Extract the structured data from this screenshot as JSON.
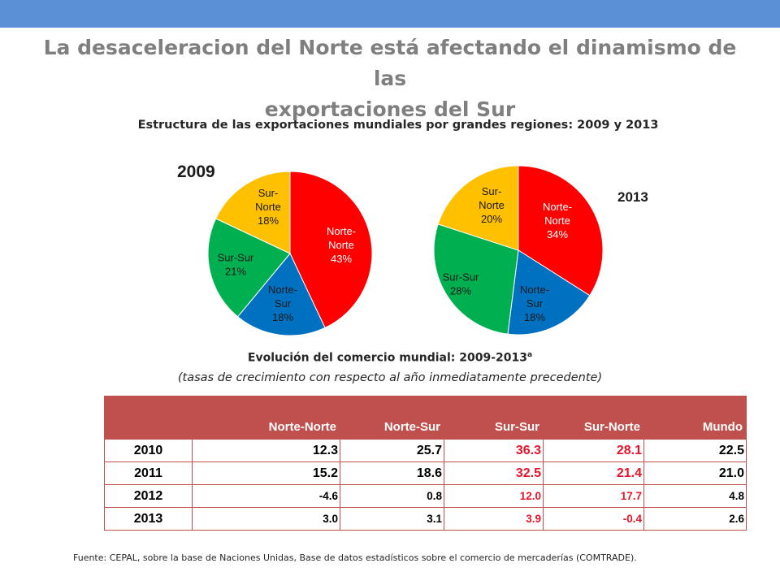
{
  "header_color": "#5b8fd6",
  "title_line1": "La desaceleracion del Norte está afectando el dinamismo de las",
  "title_line2": "exportaciones del Sur",
  "subtitle": "Estructura de las exportaciones mundiales por grandes regiones: 2009 y 2013",
  "chart_data": [
    {
      "type": "pie",
      "title": "2009",
      "slices": [
        {
          "label": [
            "Norte-",
            "Norte",
            "43%"
          ],
          "name": "Norte-Norte",
          "value": 43,
          "color": "#ff0000",
          "text_color": "#ffffff"
        },
        {
          "label": [
            "Norte-",
            "Sur",
            "18%"
          ],
          "name": "Norte-Sur",
          "value": 18,
          "color": "#0070c0",
          "text_color": "#1a1a1a"
        },
        {
          "label": [
            "Sur-Sur",
            "21%"
          ],
          "name": "Sur-Sur",
          "value": 21,
          "color": "#00b050",
          "text_color": "#1a1a1a"
        },
        {
          "label": [
            "Sur-",
            "Norte",
            "18%"
          ],
          "name": "Sur-Norte",
          "value": 18,
          "color": "#ffc000",
          "text_color": "#1a1a1a"
        }
      ]
    },
    {
      "type": "pie",
      "title": "2013",
      "slices": [
        {
          "label": [
            "Norte-",
            "Norte",
            "34%"
          ],
          "name": "Norte-Norte",
          "value": 34,
          "color": "#ff0000",
          "text_color": "#ffffff"
        },
        {
          "label": [
            "Norte-",
            "Sur",
            "18%"
          ],
          "name": "Norte-Sur",
          "value": 18,
          "color": "#0070c0",
          "text_color": "#1a1a1a"
        },
        {
          "label": [
            "Sur-Sur",
            "28%"
          ],
          "name": "Sur-Sur",
          "value": 28,
          "color": "#00b050",
          "text_color": "#1a1a1a"
        },
        {
          "label": [
            "Sur-",
            "Norte",
            "20%"
          ],
          "name": "Sur-Norte",
          "value": 20,
          "color": "#ffc000",
          "text_color": "#1a1a1a"
        }
      ]
    },
    {
      "type": "table",
      "title": "Evolución del comercio mundial: 2009-2013",
      "title_sup": "a",
      "subtitle": "(tasas de crecimiento con respecto al año inmediatamente precedente)",
      "columns": [
        "",
        "Norte-Norte",
        "Norte-Sur",
        "Sur-Sur",
        "Sur-Norte",
        "Mundo"
      ],
      "rows": [
        {
          "year": "2010",
          "values": [
            "12.3",
            "25.7",
            "36.3",
            "28.1",
            "22.5"
          ]
        },
        {
          "year": "2011",
          "values": [
            "15.2",
            "18.6",
            "32.5",
            "21.4",
            "21.0"
          ]
        },
        {
          "year": "2012",
          "values": [
            "-4.6",
            "0.8",
            "12.0",
            "17.7",
            "4.8"
          ]
        },
        {
          "year": "2013",
          "values": [
            "3.0",
            "3.1",
            "3.9",
            "-0.4",
            "2.6"
          ]
        }
      ],
      "header_color": "#c0504d",
      "highlight_color": "#e8142b"
    }
  ],
  "source": "Fuente: CEPAL, sobre la base de Naciones Unidas, Base de datos estadísticos sobre el comercio de mercaderías (COMTRADE)."
}
